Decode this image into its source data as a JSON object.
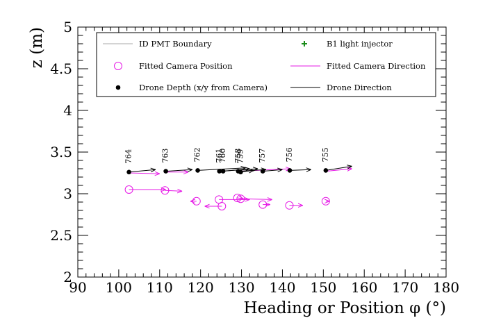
{
  "chart_data": {
    "type": "scatter",
    "xlabel": "Heading or Position φ (°)",
    "ylabel": "z (m)",
    "xlim": [
      90,
      180
    ],
    "ylim": [
      2,
      5
    ],
    "x_ticks": [
      "90",
      "100",
      "110",
      "120",
      "130",
      "140",
      "150",
      "160",
      "170",
      "180"
    ],
    "y_ticks": [
      "2",
      "2.5",
      "3",
      "3.5",
      "4",
      "4.5",
      "5"
    ],
    "grid": false,
    "legend_position": "top",
    "legend": [
      {
        "label": "ID PMT Boundary",
        "marker": "line",
        "color": "#aaaaaa"
      },
      {
        "label": "B1 light injector",
        "marker": "plus",
        "color": "#1a8c1a"
      },
      {
        "label": "Fitted Camera Position",
        "marker": "open-circle",
        "color": "#e619e6"
      },
      {
        "label": "Fitted Camera Direction",
        "marker": "line",
        "color": "#e619e6"
      },
      {
        "label": "Drone Depth (x/y from Camera)",
        "marker": "filled-circle",
        "color": "#000000"
      },
      {
        "label": "Drone Direction",
        "marker": "line",
        "color": "#000000"
      }
    ],
    "series": [
      {
        "name": "Drone Depth (x/y from Camera)",
        "color": "#000000",
        "points": [
          {
            "label": "764",
            "x": 102.5,
            "y": 3.26,
            "dir_x": 109.0,
            "dir_y": 3.29
          },
          {
            "label": "763",
            "x": 111.5,
            "y": 3.27,
            "dir_x": 118.0,
            "dir_y": 3.29
          },
          {
            "label": "762",
            "x": 119.3,
            "y": 3.28,
            "dir_x": 131.0,
            "dir_y": 3.31
          },
          {
            "label": "761",
            "x": 124.6,
            "y": 3.27,
            "dir_x": 134.0,
            "dir_y": 3.3
          },
          {
            "label": "760",
            "x": 125.5,
            "y": 3.27,
            "dir_x": 132.0,
            "dir_y": 3.3
          },
          {
            "label": "758",
            "x": 129.2,
            "y": 3.27,
            "dir_x": 136.0,
            "dir_y": 3.29
          },
          {
            "label": "759",
            "x": 129.8,
            "y": 3.26,
            "dir_x": 133.0,
            "dir_y": 3.28
          },
          {
            "label": "757",
            "x": 135.2,
            "y": 3.27,
            "dir_x": 140.0,
            "dir_y": 3.29
          },
          {
            "label": "756",
            "x": 141.8,
            "y": 3.28,
            "dir_x": 147.0,
            "dir_y": 3.29
          },
          {
            "label": "755",
            "x": 150.6,
            "y": 3.28,
            "dir_x": 157.0,
            "dir_y": 3.33
          }
        ]
      },
      {
        "name": "Fitted Camera Direction",
        "color": "#e619e6",
        "points": [
          {
            "x": 102.5,
            "y": 3.25,
            "dir_x": 110.0,
            "dir_y": 3.24
          },
          {
            "x": 111.5,
            "y": 3.26,
            "dir_x": 117.0,
            "dir_y": 3.26
          },
          {
            "x": 129.2,
            "y": 3.27,
            "dir_x": 142.0,
            "dir_y": 3.3
          },
          {
            "x": 150.6,
            "y": 3.27,
            "dir_x": 157.0,
            "dir_y": 3.3
          }
        ]
      },
      {
        "name": "Fitted Camera Position",
        "color": "#e619e6",
        "points": [
          {
            "x": 102.5,
            "y": 3.05,
            "dir_x": 111.5,
            "dir_y": 3.05
          },
          {
            "x": 111.3,
            "y": 3.04,
            "dir_x": 115.5,
            "dir_y": 3.03
          },
          {
            "x": 119.0,
            "y": 2.91,
            "dir_x": 117.5,
            "dir_y": 2.91
          },
          {
            "x": 124.5,
            "y": 2.93,
            "dir_x": 132.0,
            "dir_y": 2.93
          },
          {
            "x": 125.2,
            "y": 2.85,
            "dir_x": 121.0,
            "dir_y": 2.85
          },
          {
            "x": 129.0,
            "y": 2.95,
            "dir_x": 130.5,
            "dir_y": 2.94
          },
          {
            "x": 129.8,
            "y": 2.94,
            "dir_x": 137.5,
            "dir_y": 2.93
          },
          {
            "x": 135.2,
            "y": 2.87,
            "dir_x": 137.0,
            "dir_y": 2.87
          },
          {
            "x": 141.7,
            "y": 2.86,
            "dir_x": 145.0,
            "dir_y": 2.86
          },
          {
            "x": 150.6,
            "y": 2.91,
            "dir_x": 151.5,
            "dir_y": 2.91
          }
        ]
      }
    ]
  }
}
